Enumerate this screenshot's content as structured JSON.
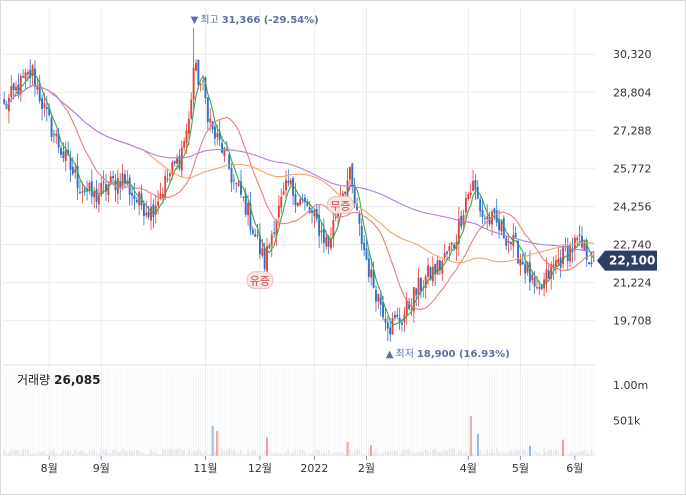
{
  "chart_data": {
    "type": "candlestick",
    "price_axis": {
      "ticks": [
        "30,320",
        "28,804",
        "27,288",
        "25,772",
        "24,256",
        "22,740",
        "21,224",
        "19,708"
      ],
      "tick_values": [
        30320,
        28804,
        27288,
        25772,
        24256,
        22740,
        21224,
        19708
      ],
      "ylim": [
        18300,
        32200
      ]
    },
    "volume_axis": {
      "ticks": [
        "1.00m",
        "501k"
      ],
      "tick_values": [
        1000000,
        501000
      ],
      "ylim": [
        0,
        1250000
      ]
    },
    "x_ticks": [
      {
        "label": "8월",
        "index": 19
      },
      {
        "label": "9월",
        "index": 41
      },
      {
        "label": "11월",
        "index": 85
      },
      {
        "label": "12월",
        "index": 108
      },
      {
        "label": "2022",
        "index": 131
      },
      {
        "label": "2월",
        "index": 153
      },
      {
        "label": "4월",
        "index": 196
      },
      {
        "label": "5월",
        "index": 218
      },
      {
        "label": "6월",
        "index": 241
      }
    ],
    "n_days": 250,
    "current_price": {
      "label": "22,100",
      "value": 22100
    },
    "max_marker": {
      "prefix": "▼",
      "text_k": "최고",
      "text_v": "31,366 (-29.54%)",
      "value": 31366,
      "index": 80
    },
    "min_marker": {
      "prefix": "▲",
      "text_k": "최저",
      "text_v": "18,900 (16.93%)",
      "value": 18900,
      "index": 162
    },
    "events": [
      {
        "label": "유증",
        "index": 108,
        "value": 21300
      },
      {
        "label": "무증",
        "index": 142,
        "value": 24300
      }
    ],
    "volume_title": {
      "label": "거래량",
      "value": "26,085"
    },
    "price_anchors": [
      [
        0,
        28200
      ],
      [
        6,
        29000
      ],
      [
        12,
        29600
      ],
      [
        18,
        27800
      ],
      [
        25,
        26300
      ],
      [
        32,
        25100
      ],
      [
        38,
        24600
      ],
      [
        44,
        25100
      ],
      [
        50,
        25400
      ],
      [
        56,
        24500
      ],
      [
        62,
        24100
      ],
      [
        68,
        25200
      ],
      [
        74,
        26200
      ],
      [
        78,
        27600
      ],
      [
        80,
        29800
      ],
      [
        84,
        28900
      ],
      [
        88,
        27200
      ],
      [
        92,
        26600
      ],
      [
        97,
        25200
      ],
      [
        102,
        24300
      ],
      [
        107,
        22800
      ],
      [
        110,
        22000
      ],
      [
        114,
        23600
      ],
      [
        120,
        25100
      ],
      [
        126,
        24400
      ],
      [
        132,
        23600
      ],
      [
        137,
        22700
      ],
      [
        142,
        24800
      ],
      [
        146,
        25400
      ],
      [
        150,
        23300
      ],
      [
        155,
        21400
      ],
      [
        160,
        20200
      ],
      [
        163,
        19500
      ],
      [
        168,
        19800
      ],
      [
        173,
        20700
      ],
      [
        178,
        21400
      ],
      [
        184,
        21900
      ],
      [
        190,
        22800
      ],
      [
        195,
        24600
      ],
      [
        198,
        25100
      ],
      [
        202,
        23900
      ],
      [
        207,
        23600
      ],
      [
        212,
        23100
      ],
      [
        216,
        22600
      ],
      [
        221,
        21700
      ],
      [
        225,
        20600
      ],
      [
        229,
        21400
      ],
      [
        233,
        22000
      ],
      [
        238,
        22500
      ],
      [
        242,
        22800
      ],
      [
        246,
        22400
      ],
      [
        249,
        22100
      ]
    ],
    "volume_spikes": [
      {
        "index": 88,
        "value": 420000
      },
      {
        "index": 90,
        "value": 350000
      },
      {
        "index": 111,
        "value": 260000
      },
      {
        "index": 145,
        "value": 200000
      },
      {
        "index": 155,
        "value": 150000
      },
      {
        "index": 197,
        "value": 560000
      },
      {
        "index": 200,
        "value": 310000
      },
      {
        "index": 222,
        "value": 140000
      },
      {
        "index": 236,
        "value": 230000
      }
    ],
    "moving_averages": [
      {
        "period": 5,
        "color": "#3aa657"
      },
      {
        "period": 20,
        "color": "#e8807f"
      },
      {
        "period": 60,
        "color": "#f0a56a"
      },
      {
        "period": 120,
        "color": "#b57ee0"
      }
    ],
    "colors": {
      "up": "#e0423a",
      "down": "#2f6fc4",
      "grid": "#ececec",
      "volume_bar": "#d7dde8",
      "badge": "#2e3e63",
      "event_fill": "#fbe3e2",
      "event_text": "#c0504d",
      "annotation": "#5a6fa8"
    }
  }
}
